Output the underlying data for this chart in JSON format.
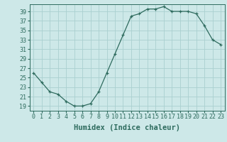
{
  "x": [
    0,
    1,
    2,
    3,
    4,
    5,
    6,
    7,
    8,
    9,
    10,
    11,
    12,
    13,
    14,
    15,
    16,
    17,
    18,
    19,
    20,
    21,
    22,
    23
  ],
  "y": [
    26,
    24,
    22,
    21.5,
    20,
    19,
    19,
    19.5,
    22,
    26,
    30,
    34,
    38,
    38.5,
    39.5,
    39.5,
    40,
    39,
    39,
    39,
    38.5,
    36,
    33,
    32
  ],
  "xlabel": "Humidex (Indice chaleur)",
  "xlim": [
    -0.5,
    23.5
  ],
  "ylim": [
    18,
    40.5
  ],
  "yticks": [
    19,
    21,
    23,
    25,
    27,
    29,
    31,
    33,
    35,
    37,
    39
  ],
  "xticks": [
    0,
    1,
    2,
    3,
    4,
    5,
    6,
    7,
    8,
    9,
    10,
    11,
    12,
    13,
    14,
    15,
    16,
    17,
    18,
    19,
    20,
    21,
    22,
    23
  ],
  "line_color": "#2e6b5e",
  "marker_color": "#2e6b5e",
  "bg_color": "#cde8e8",
  "grid_color": "#aad0d0",
  "label_fontsize": 7.5,
  "tick_fontsize": 6.0
}
